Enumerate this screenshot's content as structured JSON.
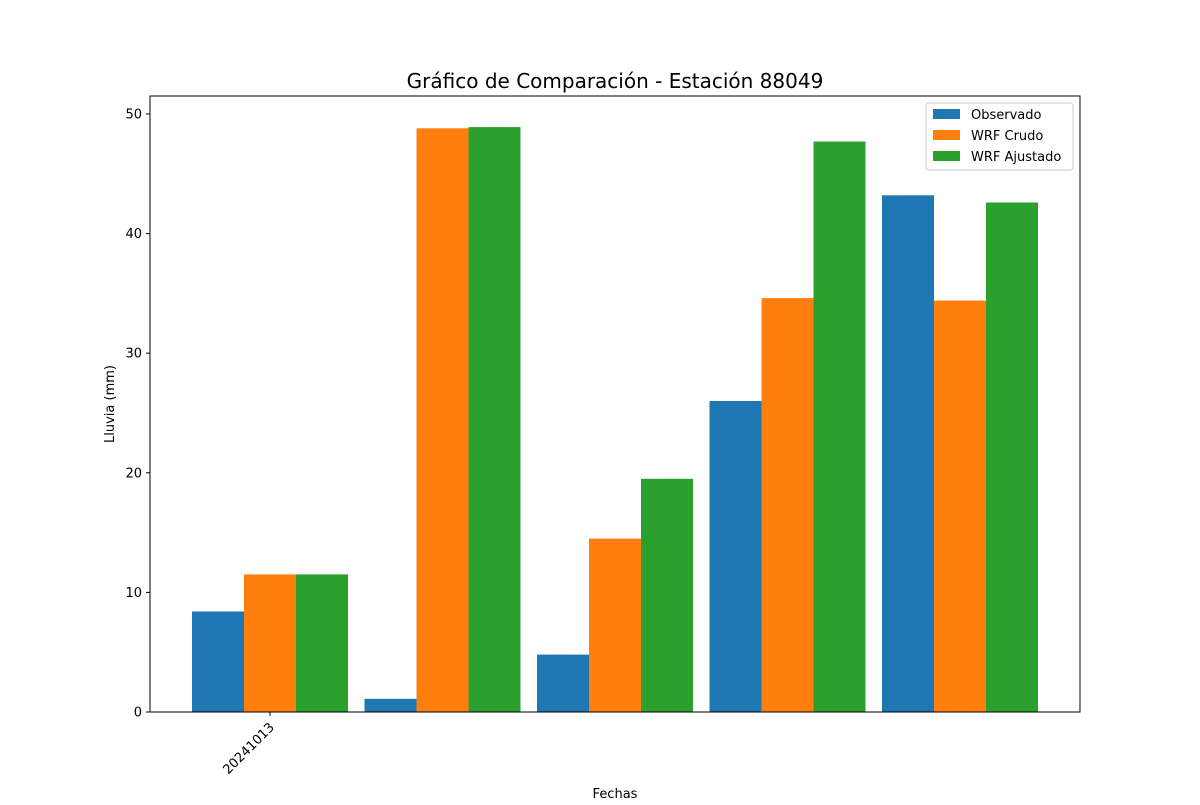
{
  "chart_data": {
    "type": "bar",
    "title": "Gráfico de Comparación - Estación 88049",
    "xlabel": "Fechas",
    "ylabel": "Lluvia (mm)",
    "ylim": [
      0,
      51.5
    ],
    "yticks": [
      0,
      10,
      20,
      30,
      40,
      50
    ],
    "xtick_labels": [
      "20241013"
    ],
    "grid": false,
    "legend_position": "top-right",
    "series": [
      {
        "name": "Observado",
        "color": "#1f77b4",
        "values": [
          8.4,
          1.1,
          4.8,
          26.0,
          43.2
        ]
      },
      {
        "name": "WRF Crudo",
        "color": "#ff7f0e",
        "values": [
          11.5,
          48.8,
          14.5,
          34.6,
          34.4
        ]
      },
      {
        "name": "WRF Ajustado",
        "color": "#2ca02c",
        "values": [
          11.5,
          48.9,
          19.5,
          47.7,
          42.6
        ]
      }
    ]
  }
}
